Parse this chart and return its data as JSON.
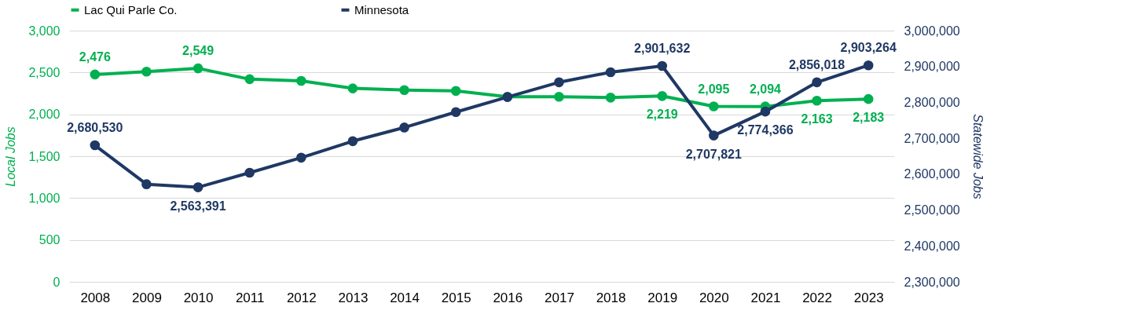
{
  "chart_data": {
    "type": "line",
    "ylabel": "Local Jobs",
    "y2label": "Statewide Jobs",
    "categories": [
      "2008",
      "2009",
      "2010",
      "2011",
      "2012",
      "2013",
      "2014",
      "2015",
      "2016",
      "2017",
      "2018",
      "2019",
      "2020",
      "2021",
      "2022",
      "2023"
    ],
    "ylim": [
      0,
      3000
    ],
    "yticks": [
      0,
      500,
      {
        "value": 1000,
        "label": "1,000"
      },
      {
        "value": 1500,
        "label": "1,500"
      },
      {
        "value": 2000,
        "label": "2,000"
      },
      {
        "value": 2500,
        "label": "2,500"
      },
      {
        "value": 3000,
        "label": "3,000"
      }
    ],
    "y2lim": [
      2300000,
      3000000
    ],
    "y2ticks": [
      {
        "value": 2300000,
        "label": "2,300,000"
      },
      {
        "value": 2400000,
        "label": "2,400,000"
      },
      {
        "value": 2500000,
        "label": "2,500,000"
      },
      {
        "value": 2600000,
        "label": "2,600,000"
      },
      {
        "value": 2700000,
        "label": "2,700,000"
      },
      {
        "value": 2800000,
        "label": "2,800,000"
      },
      {
        "value": 2900000,
        "label": "2,900,000"
      },
      {
        "value": 3000000,
        "label": "3,000,000"
      }
    ],
    "grid": "y",
    "legend": "top",
    "marker": "circle",
    "series": [
      {
        "name": "Lac Qui Parle Co.",
        "color": "#00b050",
        "values": [
          2476,
          2510,
          2549,
          2420,
          2400,
          2310,
          2290,
          2280,
          2210,
          2210,
          2200,
          2219,
          2095,
          2094,
          2163,
          2183
        ],
        "value_labels": [
          "2,476",
          null,
          "2,549",
          null,
          null,
          null,
          null,
          null,
          null,
          null,
          null,
          "2,219",
          "2,095",
          "2,094",
          "2,163",
          "2,183"
        ]
      },
      {
        "name": "Minnesota",
        "color": "#1f3864",
        "axis": "y2",
        "values": [
          2680530,
          2572000,
          2563391,
          2604000,
          2646000,
          2692000,
          2730000,
          2773000,
          2815000,
          2856000,
          2884000,
          2901632,
          2707821,
          2774366,
          2856018,
          2903264
        ],
        "value_labels": [
          "2,680,530",
          null,
          "2,563,391",
          null,
          null,
          null,
          null,
          null,
          null,
          null,
          null,
          "2,901,632",
          "2,707,821",
          "2,774,366",
          "2,856,018",
          "2,903,264"
        ]
      }
    ]
  }
}
